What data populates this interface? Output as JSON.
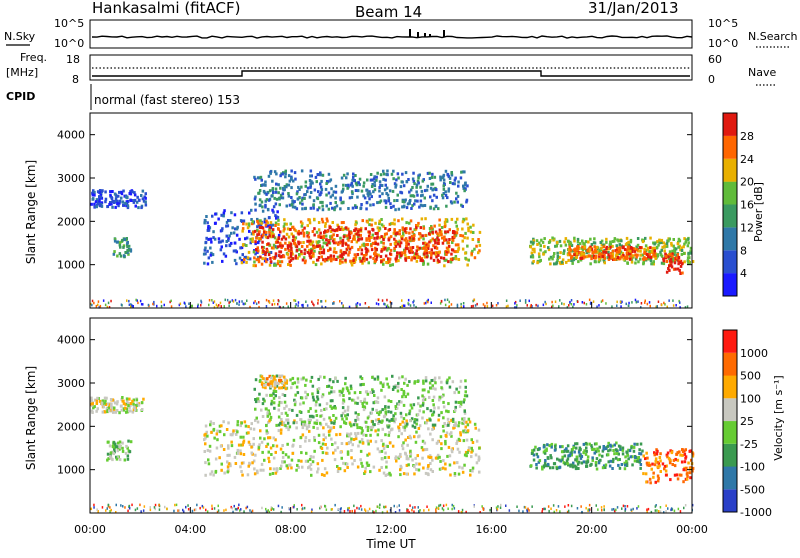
{
  "header": {
    "station": "Hankasalmi (fitACF)",
    "beam": "Beam 14",
    "date": "31/Jan/2013"
  },
  "noise_panel": {
    "left_label": "N.Sky",
    "right_label": "N.Search",
    "tick_top": "10^5",
    "tick_bottom": "10^0"
  },
  "freq_panel": {
    "left_label_1": "Freq.",
    "left_label_2": "[MHz]",
    "left_tick_top": "18",
    "left_tick_bottom": "8",
    "right_label": "Nave",
    "right_tick_top": "60",
    "right_tick_bottom": "0"
  },
  "cpid": {
    "label": "CPID",
    "program": "normal (fast stereo) 153"
  },
  "chart_data": [
    {
      "type": "heatmap",
      "title": "Power",
      "ylabel": "Slant Range [km]",
      "xlabel": "",
      "ylim": [
        0,
        4500
      ],
      "y_ticks": [
        "1000",
        "2000",
        "3000",
        "4000"
      ],
      "x_ticks": [
        "00:00",
        "04:00",
        "08:00",
        "12:00",
        "16:00",
        "20:00",
        "00:00"
      ],
      "colorbar": {
        "label": "Power [dB]",
        "ticks": [
          "4",
          "8",
          "12",
          "16",
          "20",
          "24",
          "28"
        ],
        "colors": [
          "#1a1aff",
          "#2a4fd0",
          "#2f78a8",
          "#3a9a60",
          "#60bb3a",
          "#e8b000",
          "#ff6600",
          "#e01a10"
        ]
      },
      "echo_regions": [
        {
          "t_start": 0.0,
          "t_end": 2.2,
          "r_low": 2350,
          "r_high": 2750,
          "level": 1
        },
        {
          "t_start": 0.9,
          "t_end": 1.6,
          "r_low": 1200,
          "r_high": 1650,
          "level": 3
        },
        {
          "t_start": 4.5,
          "t_end": 7.5,
          "r_low": 1050,
          "r_high": 2300,
          "level": 1
        },
        {
          "t_start": 6.0,
          "t_end": 15.5,
          "r_low": 1000,
          "r_high": 2100,
          "level": 5
        },
        {
          "t_start": 6.5,
          "t_end": 14.5,
          "r_low": 1100,
          "r_high": 1900,
          "level": 7
        },
        {
          "t_start": 6.5,
          "t_end": 15.0,
          "r_low": 2300,
          "r_high": 3200,
          "level": 2
        },
        {
          "t_start": 17.5,
          "t_end": 24.0,
          "r_low": 1050,
          "r_high": 1650,
          "level": 4
        },
        {
          "t_start": 19.0,
          "t_end": 22.5,
          "r_low": 1150,
          "r_high": 1450,
          "level": 6
        },
        {
          "t_start": 22.8,
          "t_end": 23.6,
          "r_low": 800,
          "r_high": 1300,
          "level": 7
        }
      ]
    },
    {
      "type": "heatmap",
      "title": "Velocity",
      "ylabel": "Slant Range [km]",
      "xlabel": "Time UT",
      "ylim": [
        0,
        4500
      ],
      "y_ticks": [
        "1000",
        "2000",
        "3000",
        "4000"
      ],
      "x_ticks": [
        "00:00",
        "04:00",
        "08:00",
        "12:00",
        "16:00",
        "20:00",
        "00:00"
      ],
      "colorbar": {
        "label": "Velocity [m s⁻¹]",
        "ticks": [
          "1000",
          "500",
          "100",
          "25",
          "-25",
          "-100",
          "-500",
          "-1000"
        ],
        "colors": [
          "#2a40c8",
          "#2f78a8",
          "#3a9a50",
          "#66cc33",
          "#c8c8c0",
          "#ffaa00",
          "#ff6a00",
          "#ff1a10"
        ]
      },
      "echo_regions": [
        {
          "t_start": 0.0,
          "t_end": 2.1,
          "r_low": 2350,
          "r_high": 2700,
          "level": 4
        },
        {
          "t_start": 0.6,
          "t_end": 1.6,
          "r_low": 1250,
          "r_high": 1700,
          "level": 3
        },
        {
          "t_start": 4.5,
          "t_end": 15.5,
          "r_low": 900,
          "r_high": 2200,
          "level": 4
        },
        {
          "t_start": 6.5,
          "t_end": 15.0,
          "r_low": 2000,
          "r_high": 3200,
          "level": 3
        },
        {
          "t_start": 6.8,
          "t_end": 7.8,
          "r_low": 2900,
          "r_high": 3200,
          "level": 5
        },
        {
          "t_start": 17.5,
          "t_end": 22.0,
          "r_low": 1050,
          "r_high": 1650,
          "level": 2
        },
        {
          "t_start": 22.0,
          "t_end": 24.0,
          "r_low": 700,
          "r_high": 1500,
          "level": 6
        }
      ]
    }
  ]
}
